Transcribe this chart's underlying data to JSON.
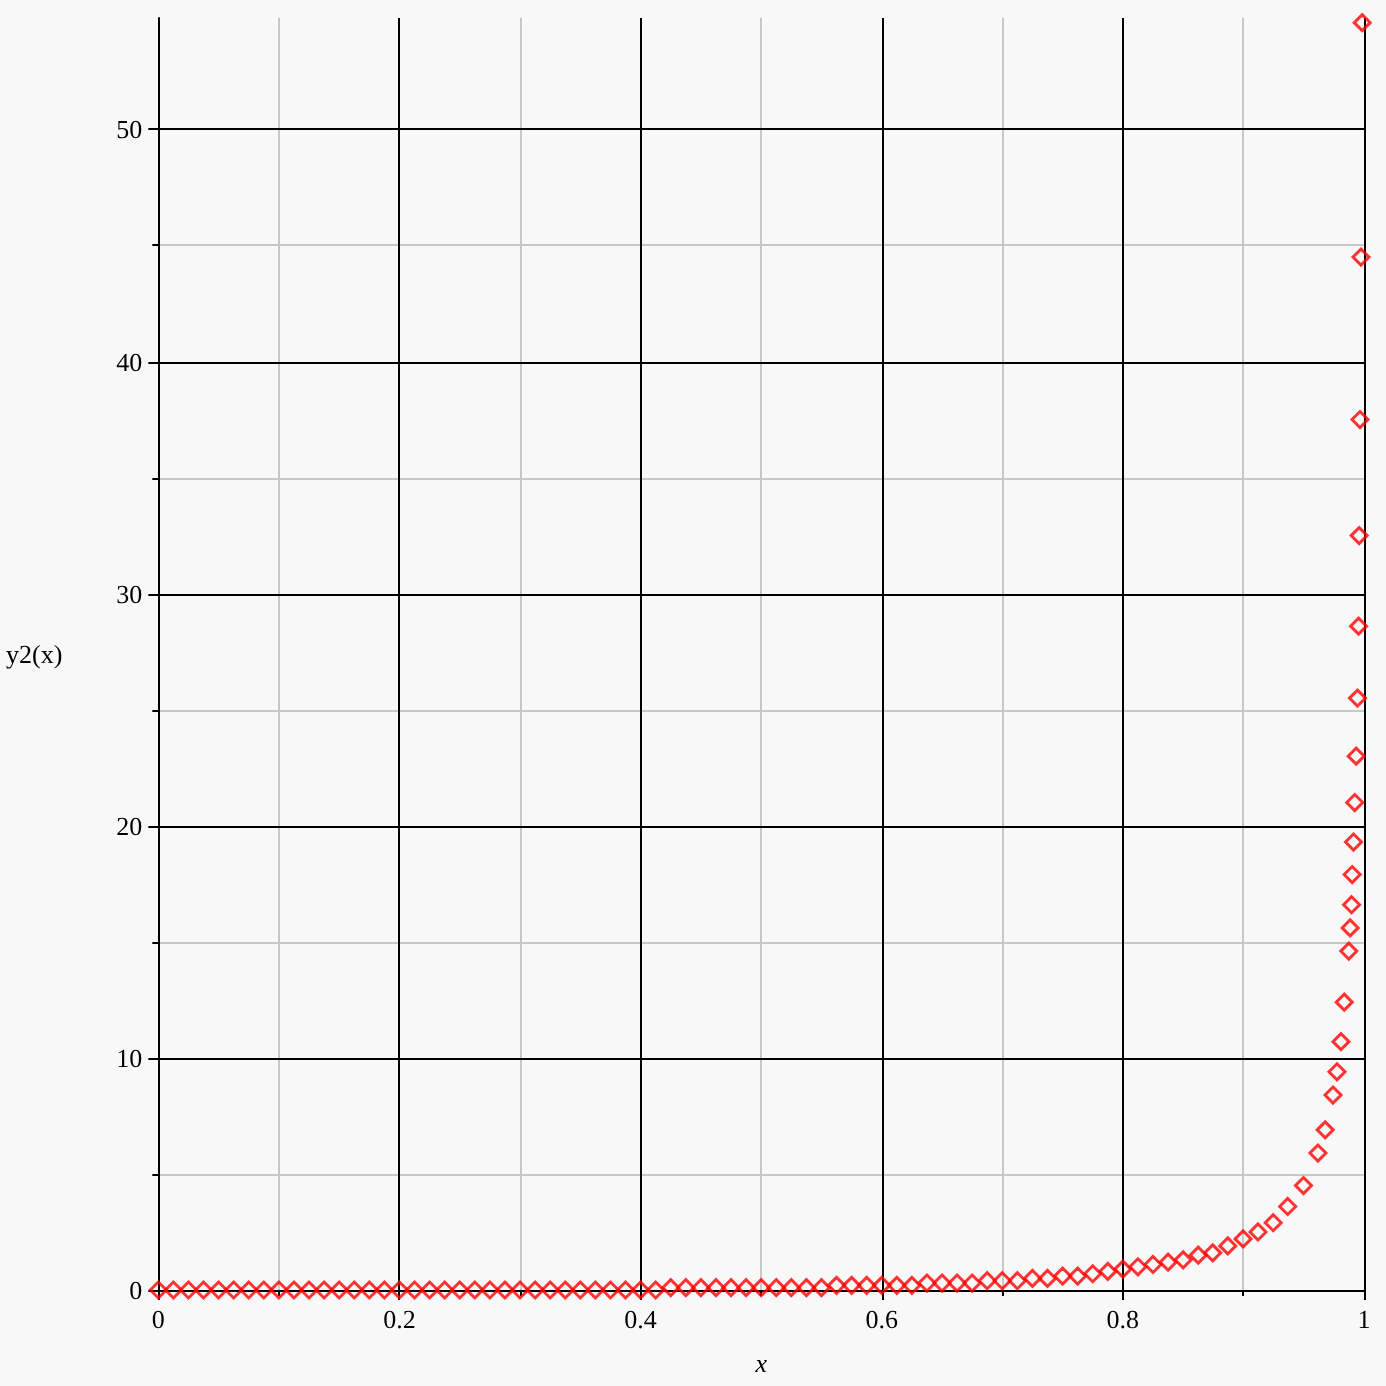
{
  "chart_data": {
    "type": "scatter",
    "xlabel": "x",
    "ylabel": "y2(x)",
    "marker": "diamond",
    "grid": true,
    "xlim": [
      0,
      1
    ],
    "ylim": [
      0,
      54.8
    ],
    "xticks": [
      0,
      {
        "value": 0.1,
        "label": null
      },
      0.2,
      {
        "value": 0.3,
        "label": null
      },
      0.4,
      {
        "value": 0.5,
        "label": null
      },
      0.6,
      {
        "value": 0.7,
        "label": null
      },
      0.8,
      {
        "value": 0.9,
        "label": null
      },
      1
    ],
    "yticks": [
      0,
      {
        "value": 5,
        "label": null
      },
      10,
      {
        "value": 15,
        "label": null
      },
      20,
      {
        "value": 25,
        "label": null
      },
      30,
      {
        "value": 35,
        "label": null
      },
      40,
      {
        "value": 45,
        "label": null
      },
      50
    ],
    "series": [
      {
        "color": "#ff0000",
        "x": [
          0,
          0.0125,
          0.025,
          0.0375,
          0.05,
          0.0625,
          0.075,
          0.0875,
          0.1,
          0.1125,
          0.125,
          0.1375,
          0.15,
          0.1625,
          0.175,
          0.1875,
          0.2,
          0.2125,
          0.225,
          0.2375,
          0.25,
          0.2625,
          0.275,
          0.2875,
          0.3,
          0.3125,
          0.325,
          0.3375,
          0.35,
          0.3625,
          0.375,
          0.3875,
          0.4,
          0.4125,
          0.425,
          0.4375,
          0.45,
          0.4625,
          0.475,
          0.4875,
          0.5,
          0.5125,
          0.525,
          0.5375,
          0.55,
          0.5625,
          0.575,
          0.5875,
          0.6,
          0.6125,
          0.625,
          0.6375,
          0.65,
          0.6625,
          0.675,
          0.6875,
          0.7,
          0.7125,
          0.725,
          0.7375,
          0.75,
          0.7625,
          0.775,
          0.7875,
          0.8,
          0.8125,
          0.825,
          0.8375,
          0.85,
          0.8625,
          0.8745,
          0.887,
          0.8997,
          0.9121,
          0.9247,
          0.9367,
          0.9498,
          0.9618,
          0.9678,
          0.9743,
          0.9776,
          0.9809,
          0.9836,
          0.9874,
          0.9885,
          0.9897,
          0.9902,
          0.9913,
          0.9923,
          0.9935,
          0.9946,
          0.9955,
          0.996,
          0.9967,
          0.9975,
          0.9985
        ],
        "values": [
          0,
          0,
          0,
          0,
          0,
          0,
          0,
          0,
          0,
          0,
          0,
          0,
          0,
          0,
          0,
          0,
          0,
          0,
          0,
          0,
          0,
          0,
          0,
          0,
          0,
          0,
          0,
          0,
          0,
          0,
          0,
          0,
          0,
          0,
          0.1,
          0.1,
          0.1,
          0.1,
          0.1,
          0.1,
          0.1,
          0.1,
          0.1,
          0.1,
          0.1,
          0.2,
          0.2,
          0.2,
          0.2,
          0.2,
          0.2,
          0.3,
          0.3,
          0.3,
          0.3,
          0.4,
          0.4,
          0.4,
          0.5,
          0.5,
          0.6,
          0.6,
          0.7,
          0.8,
          0.9,
          1.0,
          1.1,
          1.2,
          1.3,
          1.5,
          1.6,
          1.9,
          2.2,
          2.5,
          2.9,
          3.6,
          4.5,
          5.9,
          6.9,
          8.4,
          9.4,
          10.7,
          12.4,
          14.6,
          15.6,
          16.6,
          17.9,
          19.3,
          21.0,
          23.0,
          25.5,
          28.6,
          32.5,
          37.5,
          44.5,
          54.6
        ]
      }
    ]
  }
}
